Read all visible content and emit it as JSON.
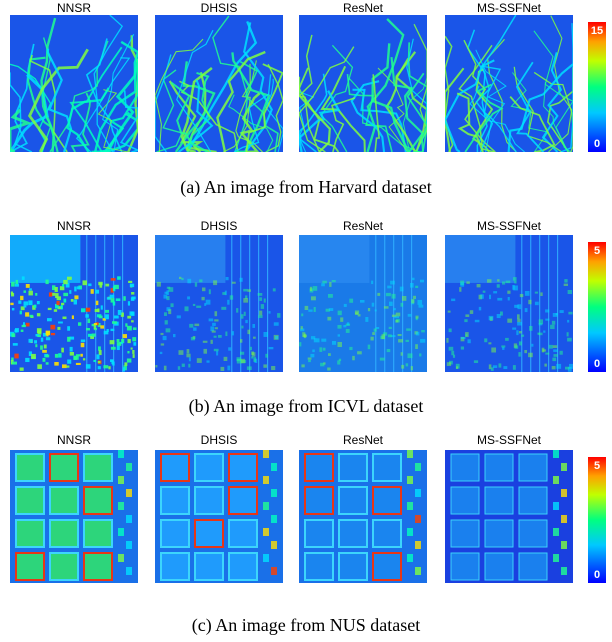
{
  "figures": [
    {
      "methods": [
        "NNSR",
        "DHSIS",
        "ResNet",
        "MS-SSFNet"
      ],
      "colorbar": {
        "max": 15,
        "min": 0
      },
      "caption": "(a) An image from Harvard dataset"
    },
    {
      "methods": [
        "NNSR",
        "DHSIS",
        "ResNet",
        "MS-SSFNet"
      ],
      "colorbar": {
        "max": 5,
        "min": 0
      },
      "caption": "(b) An image from ICVL dataset"
    },
    {
      "methods": [
        "NNSR",
        "DHSIS",
        "ResNet",
        "MS-SSFNet"
      ],
      "colorbar": {
        "max": 5,
        "min": 0
      },
      "caption": "(c) An image from NUS dataset"
    }
  ]
}
